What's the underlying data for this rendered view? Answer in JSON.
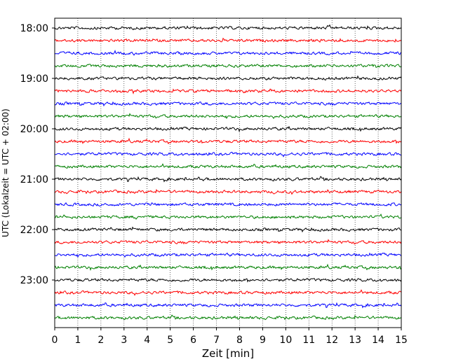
{
  "chart_data": {
    "type": "line",
    "xlabel": "Zeit  [min]",
    "ylabel": "UTC (Lokalzeit = UTC + 02:00)",
    "xlim": [
      0,
      15
    ],
    "x_ticks": [
      "0",
      "1",
      "2",
      "3",
      "4",
      "5",
      "6",
      "7",
      "8",
      "9",
      "10",
      "11",
      "12",
      "13",
      "14",
      "15"
    ],
    "y_ticks": [
      "18:00",
      "19:00",
      "20:00",
      "21:00",
      "22:00",
      "23:00"
    ],
    "grid": "vertical dotted at each minute",
    "trace_interval_minutes": 15,
    "traces_start": "18:00",
    "traces_end": "23:45",
    "trace_count": 24,
    "trace_colors": [
      "#000000",
      "#ff0000",
      "#0000ff",
      "#008000"
    ],
    "series_description": "24 seismogram traces, each 15 minutes long, colors cycle black, red, blue, green"
  }
}
